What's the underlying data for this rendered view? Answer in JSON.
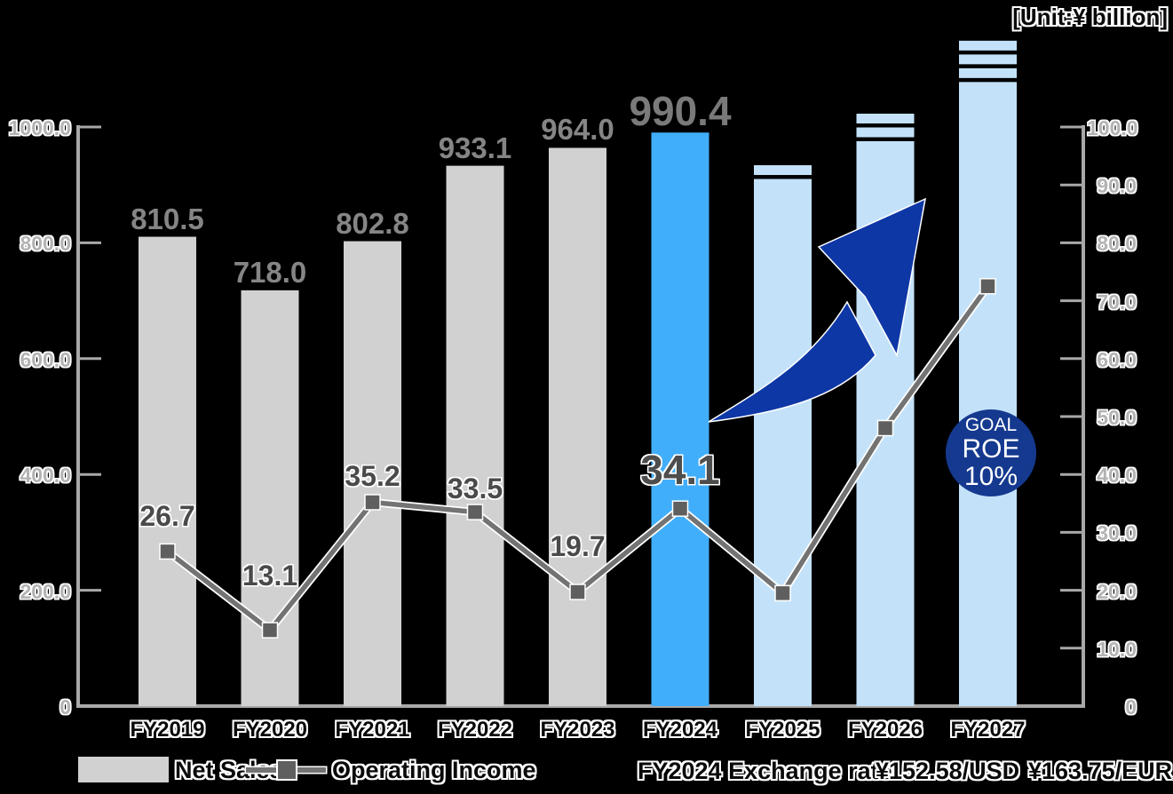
{
  "title_unit": "[Unit:¥ billion]",
  "legend": {
    "net_sales_label": "Net Sales",
    "operating_income_label": "Operating Income"
  },
  "footnote": {
    "exchange_label": "FY2024 Exchange rate",
    "usd_rate": "¥152.58/USD",
    "eur_rate": "¥163.75/EUR"
  },
  "goal_badge": {
    "line1": "GOAL",
    "line2": "ROE",
    "line3": "10%"
  },
  "colors": {
    "bar_actual": "#d1d1d1",
    "bar_highlight": "#41aefb",
    "bar_future": "#c3e2fa",
    "line": "#737373",
    "line_casing": "#ffffff",
    "marker": "#5f5f5f",
    "arrow": "#0e37a6",
    "goal_circle": "#15398f",
    "axis": "#a8a8a8"
  },
  "chart_data": {
    "type": "bar+line combo",
    "categories": [
      "FY2019",
      "FY2020",
      "FY2021",
      "FY2022",
      "FY2023",
      "FY2024",
      "FY2025",
      "FY2026",
      "FY2027"
    ],
    "left_axis": {
      "min": 0,
      "max": 1000,
      "tick_labels": [
        "1000.0",
        "800.0",
        "600.0",
        "400.0",
        "200.0",
        "0"
      ]
    },
    "right_axis": {
      "min": 0,
      "max": 100,
      "tick_labels": [
        "100.0",
        "90.0",
        "80.0",
        "70.0",
        "60.0",
        "50.0",
        "40.0",
        "30.0",
        "20.0",
        "10.0",
        "0"
      ]
    },
    "bars": [
      {
        "category": "FY2019",
        "value": 810.5,
        "label": "810.5",
        "style": "actual",
        "break_stripes": 0
      },
      {
        "category": "FY2020",
        "value": 718.0,
        "label": "718.0",
        "style": "actual",
        "break_stripes": 0
      },
      {
        "category": "FY2021",
        "value": 802.8,
        "label": "802.8",
        "style": "actual",
        "break_stripes": 0
      },
      {
        "category": "FY2022",
        "value": 933.1,
        "label": "933.1",
        "style": "actual",
        "break_stripes": 0
      },
      {
        "category": "FY2023",
        "value": 964.0,
        "label": "964.0",
        "style": "actual",
        "break_stripes": 0
      },
      {
        "category": "FY2024",
        "value": 990.4,
        "label": "990.4",
        "style": "highlight",
        "break_stripes": 0
      },
      {
        "category": "FY2025",
        "value": null,
        "label": "",
        "style": "future",
        "break_stripes": 1,
        "drawn_top_left_axis": 934
      },
      {
        "category": "FY2026",
        "value": null,
        "label": "",
        "style": "future",
        "break_stripes": 2,
        "drawn_top_left_axis": 1023
      },
      {
        "category": "FY2027",
        "value": null,
        "label": "",
        "style": "future",
        "break_stripes": 3,
        "drawn_top_left_axis": 1149
      }
    ],
    "line_series": {
      "name": "Operating Income",
      "axis": "right",
      "values": [
        26.7,
        13.1,
        35.2,
        33.5,
        19.7,
        34.1,
        19.5,
        48.0,
        72.5
      ],
      "value_labels": [
        "26.7",
        "13.1",
        "35.2",
        "33.5",
        "19.7",
        "34.1",
        "",
        "",
        ""
      ],
      "values_estimated": [
        false,
        false,
        false,
        false,
        false,
        false,
        true,
        true,
        true
      ]
    },
    "bar_series_name": "Net Sales",
    "legend_position": "bottom"
  }
}
